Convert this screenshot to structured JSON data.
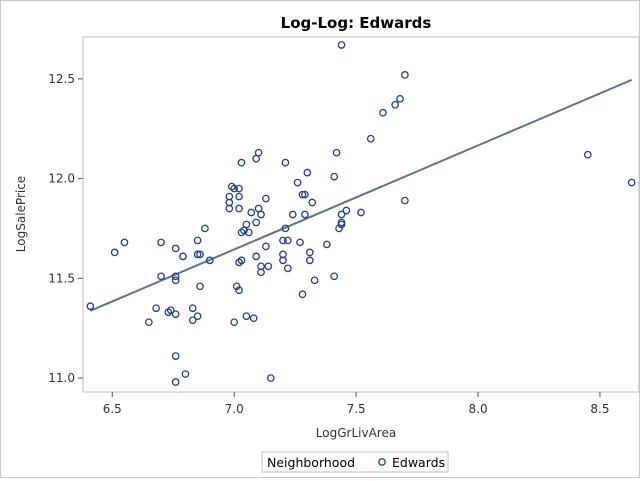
{
  "chart_data": {
    "type": "scatter",
    "title": "Log-Log: Edwards",
    "xlabel": "LogGrLivArea",
    "ylabel": "LogSalePrice",
    "xlim": [
      6.38,
      8.66
    ],
    "ylim": [
      10.93,
      12.71
    ],
    "xticks": [
      "6.5",
      "7.0",
      "7.5",
      "8.0",
      "8.5"
    ],
    "yticks": [
      "11.0",
      "11.5",
      "12.0",
      "12.5"
    ],
    "legend": {
      "title": "Neighborhood",
      "entries": [
        "Edwards"
      ],
      "placement": "bottom-center"
    },
    "colors": {
      "marker": "#1f3f8f",
      "line": "#5b7495"
    },
    "fit_line": {
      "x": [
        6.41,
        8.63
      ],
      "y": [
        11.337,
        12.495
      ]
    },
    "series": [
      {
        "name": "Edwards",
        "points": [
          [
            6.41,
            11.36
          ],
          [
            6.51,
            11.63
          ],
          [
            6.55,
            11.68
          ],
          [
            6.65,
            11.28
          ],
          [
            6.68,
            11.35
          ],
          [
            6.7,
            11.51
          ],
          [
            6.7,
            11.68
          ],
          [
            6.73,
            11.33
          ],
          [
            6.74,
            11.34
          ],
          [
            6.76,
            11.32
          ],
          [
            6.76,
            11.49
          ],
          [
            6.76,
            11.51
          ],
          [
            6.76,
            11.65
          ],
          [
            6.76,
            11.11
          ],
          [
            6.76,
            10.98
          ],
          [
            6.79,
            11.61
          ],
          [
            6.8,
            11.02
          ],
          [
            6.83,
            11.29
          ],
          [
            6.83,
            11.35
          ],
          [
            6.85,
            11.31
          ],
          [
            6.85,
            11.62
          ],
          [
            6.85,
            11.69
          ],
          [
            6.86,
            11.46
          ],
          [
            6.86,
            11.62
          ],
          [
            6.88,
            11.75
          ],
          [
            6.9,
            11.59
          ],
          [
            6.98,
            11.85
          ],
          [
            6.98,
            11.88
          ],
          [
            6.98,
            11.91
          ],
          [
            6.99,
            11.96
          ],
          [
            7.0,
            11.95
          ],
          [
            7.0,
            11.28
          ],
          [
            7.01,
            11.46
          ],
          [
            7.02,
            11.58
          ],
          [
            7.02,
            11.85
          ],
          [
            7.02,
            11.91
          ],
          [
            7.02,
            11.44
          ],
          [
            7.02,
            11.95
          ],
          [
            7.03,
            11.59
          ],
          [
            7.03,
            11.73
          ],
          [
            7.03,
            12.08
          ],
          [
            7.04,
            11.74
          ],
          [
            7.05,
            11.31
          ],
          [
            7.05,
            11.77
          ],
          [
            7.06,
            11.73
          ],
          [
            7.07,
            11.83
          ],
          [
            7.08,
            11.3
          ],
          [
            7.09,
            11.61
          ],
          [
            7.09,
            11.78
          ],
          [
            7.09,
            12.1
          ],
          [
            7.1,
            12.13
          ],
          [
            7.1,
            11.85
          ],
          [
            7.11,
            11.53
          ],
          [
            7.11,
            11.56
          ],
          [
            7.11,
            11.82
          ],
          [
            7.13,
            11.66
          ],
          [
            7.13,
            11.9
          ],
          [
            7.14,
            11.56
          ],
          [
            7.15,
            11.0
          ],
          [
            7.2,
            11.59
          ],
          [
            7.2,
            11.62
          ],
          [
            7.2,
            11.69
          ],
          [
            7.21,
            11.75
          ],
          [
            7.21,
            12.08
          ],
          [
            7.22,
            11.55
          ],
          [
            7.22,
            11.69
          ],
          [
            7.24,
            11.82
          ],
          [
            7.26,
            11.98
          ],
          [
            7.27,
            11.68
          ],
          [
            7.28,
            11.92
          ],
          [
            7.28,
            11.42
          ],
          [
            7.29,
            11.82
          ],
          [
            7.29,
            11.92
          ],
          [
            7.3,
            12.03
          ],
          [
            7.31,
            11.63
          ],
          [
            7.31,
            11.59
          ],
          [
            7.32,
            11.88
          ],
          [
            7.33,
            11.49
          ],
          [
            7.38,
            11.67
          ],
          [
            7.41,
            12.01
          ],
          [
            7.41,
            11.51
          ],
          [
            7.42,
            12.13
          ],
          [
            7.43,
            11.75
          ],
          [
            7.44,
            11.77
          ],
          [
            7.44,
            11.78
          ],
          [
            7.44,
            11.82
          ],
          [
            7.44,
            12.67
          ],
          [
            7.46,
            11.84
          ],
          [
            7.52,
            11.83
          ],
          [
            7.56,
            12.2
          ],
          [
            7.61,
            12.33
          ],
          [
            7.66,
            12.37
          ],
          [
            7.68,
            12.4
          ],
          [
            7.7,
            12.52
          ],
          [
            7.7,
            11.89
          ],
          [
            8.45,
            12.12
          ],
          [
            8.63,
            11.98
          ]
        ]
      }
    ]
  }
}
